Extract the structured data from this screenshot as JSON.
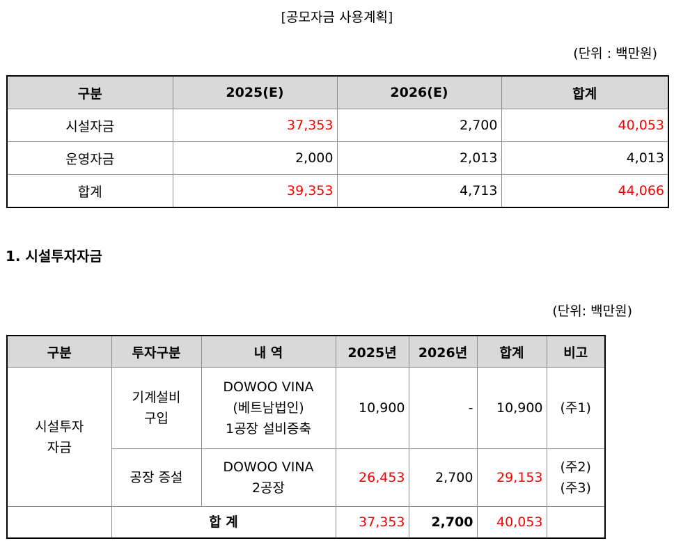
{
  "title": "[공모자금 사용계획]",
  "unit1": "(단위 : 백만원)",
  "table1": {
    "headers": [
      "구분",
      "2025(E)",
      "2026(E)",
      "합계"
    ],
    "rows": [
      {
        "label": "시설자금",
        "y2025": "37,353",
        "y2026": "2,700",
        "total": "40,053"
      },
      {
        "label": "운영자금",
        "y2025": "2,000",
        "y2026": "2,013",
        "total": "4,013"
      },
      {
        "label": "합계",
        "y2025": "39,353",
        "y2026": "4,713",
        "total": "44,066"
      }
    ]
  },
  "section_title": "1. 시설투자자금",
  "unit2": "(단위: 백만원)",
  "table2": {
    "headers": [
      "구분",
      "투자구분",
      "내 역",
      "2025년",
      "2026년",
      "합계",
      "비고"
    ],
    "category": "시설투자\n자금",
    "rows": [
      {
        "type": "기계설비\n구입",
        "detail": "DOWOO VINA\n(베트남법인)\n1공장 설비증축",
        "y2025": "10,900",
        "y2026": "-",
        "total": "10,900",
        "note": "(주1)"
      },
      {
        "type": "공장 증설",
        "detail": "DOWOO VINA\n2공장",
        "y2025": "26,453",
        "y2026": "2,700",
        "total": "29,153",
        "note": "(주2)\n(주3)"
      }
    ],
    "total_row": {
      "label": "합 계",
      "y2025": "37,353",
      "y2026": "2,700",
      "total": "40,053"
    }
  },
  "colors": {
    "highlight": "#ff0000",
    "header_bg": "#d9d9d9"
  }
}
